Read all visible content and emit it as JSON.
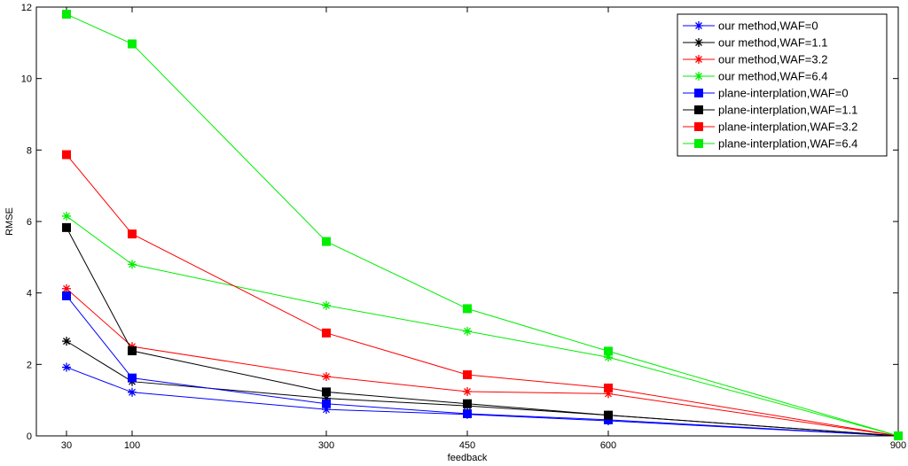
{
  "chart_data": {
    "type": "line",
    "title": "",
    "xlabel": "feedback",
    "ylabel": "RMSE",
    "x": [
      30,
      100,
      300,
      450,
      600,
      900
    ],
    "x_ticks": [
      "30",
      "100",
      "300",
      "450",
      "600",
      "900"
    ],
    "y_ticks": [
      "0",
      "2",
      "4",
      "6",
      "8",
      "10",
      "12"
    ],
    "xlim": [
      0,
      900
    ],
    "ylim": [
      0,
      12
    ],
    "grid": false,
    "legend_position": "top-right",
    "series": [
      {
        "name": "our method,WAF=0",
        "marker": "star",
        "color": "#0000ff",
        "values": [
          1.92,
          1.22,
          0.74,
          0.6,
          0.42,
          0.0
        ]
      },
      {
        "name": "our method,WAF=1.1",
        "marker": "star",
        "color": "#000000",
        "values": [
          2.65,
          1.52,
          1.05,
          0.84,
          0.58,
          0.0
        ]
      },
      {
        "name": "our method,WAF=3.2",
        "marker": "star",
        "color": "#ff0000",
        "values": [
          4.12,
          2.5,
          1.66,
          1.24,
          1.18,
          0.0
        ]
      },
      {
        "name": "our method,WAF=6.4",
        "marker": "star",
        "color": "#00ee00",
        "values": [
          6.15,
          4.8,
          3.65,
          2.93,
          2.2,
          0.0
        ]
      },
      {
        "name": "plane-interplation,WAF=0",
        "marker": "square",
        "color": "#0000ff",
        "values": [
          3.92,
          1.62,
          0.9,
          0.62,
          0.45,
          0.0
        ]
      },
      {
        "name": "plane-interplation,WAF=1.1",
        "marker": "square",
        "color": "#000000",
        "values": [
          5.83,
          2.38,
          1.23,
          0.9,
          0.58,
          0.0
        ]
      },
      {
        "name": "plane-interplation,WAF=3.2",
        "marker": "square",
        "color": "#ff0000",
        "values": [
          7.87,
          5.65,
          2.88,
          1.71,
          1.34,
          0.0
        ]
      },
      {
        "name": "plane-interplation,WAF=6.4",
        "marker": "square",
        "color": "#00ee00",
        "values": [
          11.8,
          10.97,
          5.44,
          3.56,
          2.37,
          0.0
        ]
      }
    ]
  }
}
